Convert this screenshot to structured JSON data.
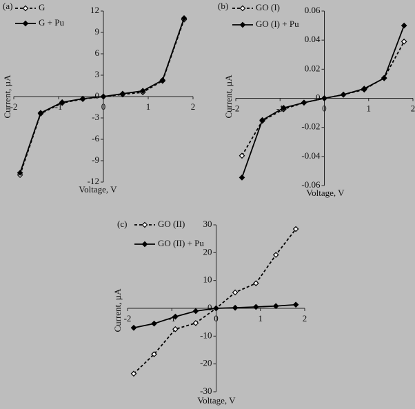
{
  "chart_data": [
    {
      "type": "line",
      "label": "(a)",
      "xlabel": "Voltage, V",
      "ylabel": "Current, µA",
      "x": [
        -1.86,
        -1.4,
        -0.92,
        -0.46,
        0,
        0.43,
        0.88,
        1.32,
        1.8
      ],
      "series": [
        {
          "name": "G",
          "color": "#000000",
          "line_style": "dashed",
          "marker_fill": "open",
          "values": [
            -11.0,
            -2.4,
            -0.9,
            -0.35,
            0,
            0.3,
            0.6,
            2.2,
            10.8
          ]
        },
        {
          "name": "G + Pu",
          "color": "#000000",
          "line_style": "solid",
          "marker_fill": "filled",
          "values": [
            -10.7,
            -2.3,
            -0.8,
            -0.3,
            0,
            0.4,
            0.8,
            2.3,
            11.0
          ]
        }
      ],
      "xlim": [
        -2,
        2
      ],
      "xticks": [
        -2,
        -1,
        0,
        1,
        2
      ],
      "ylim": [
        -12,
        12
      ],
      "yticks": [
        -12,
        -9,
        -6,
        -3,
        0,
        3,
        6,
        9,
        12
      ]
    },
    {
      "type": "line",
      "label": "(b)",
      "xlabel": "Voltage, V",
      "ylabel": "Current, µA",
      "x": [
        -1.86,
        -1.4,
        -0.92,
        -0.46,
        0,
        0.43,
        0.9,
        1.35,
        1.8
      ],
      "series": [
        {
          "name": "GO (I)",
          "color": "#000000",
          "line_style": "dashed",
          "marker_fill": "open",
          "values": [
            -0.0395,
            -0.0155,
            -0.0075,
            -0.003,
            0,
            0.0025,
            0.006,
            0.014,
            0.039
          ]
        },
        {
          "name": "GO (I) + Pu",
          "color": "#000000",
          "line_style": "solid",
          "marker_fill": "filled",
          "values": [
            -0.0545,
            -0.015,
            -0.0066,
            -0.003,
            0,
            0.0025,
            0.0066,
            0.0138,
            0.05
          ]
        }
      ],
      "xlim": [
        -2,
        2
      ],
      "xticks": [
        -2,
        -1,
        0,
        1,
        2
      ],
      "ylim": [
        -0.06,
        0.06
      ],
      "yticks": [
        -0.06,
        -0.04,
        -0.02,
        0,
        0.02,
        0.04,
        0.06
      ]
    },
    {
      "type": "line",
      "label": "(c)",
      "xlabel": "Voltage, V",
      "ylabel": "Current, µA",
      "x": [
        -1.86,
        -1.4,
        -0.92,
        -0.46,
        0,
        0.43,
        0.9,
        1.35,
        1.8
      ],
      "series": [
        {
          "name": "GO (II)",
          "color": "#000000",
          "line_style": "dashed",
          "marker_fill": "open",
          "values": [
            -23.5,
            -16.5,
            -7.5,
            -5.3,
            0,
            5.7,
            9,
            19.2,
            28.5
          ]
        },
        {
          "name": "GO (II) + Pu",
          "color": "#000000",
          "line_style": "solid",
          "marker_fill": "filled",
          "values": [
            -7,
            -5.5,
            -3,
            -1,
            0,
            0.2,
            0.5,
            0.8,
            1.3
          ]
        }
      ],
      "xlim": [
        -2,
        2
      ],
      "xticks": [
        -2,
        -1,
        0,
        1,
        2
      ],
      "ylim": [
        -30,
        30
      ],
      "yticks": [
        -30,
        -20,
        -10,
        0,
        10,
        20,
        30
      ]
    }
  ]
}
